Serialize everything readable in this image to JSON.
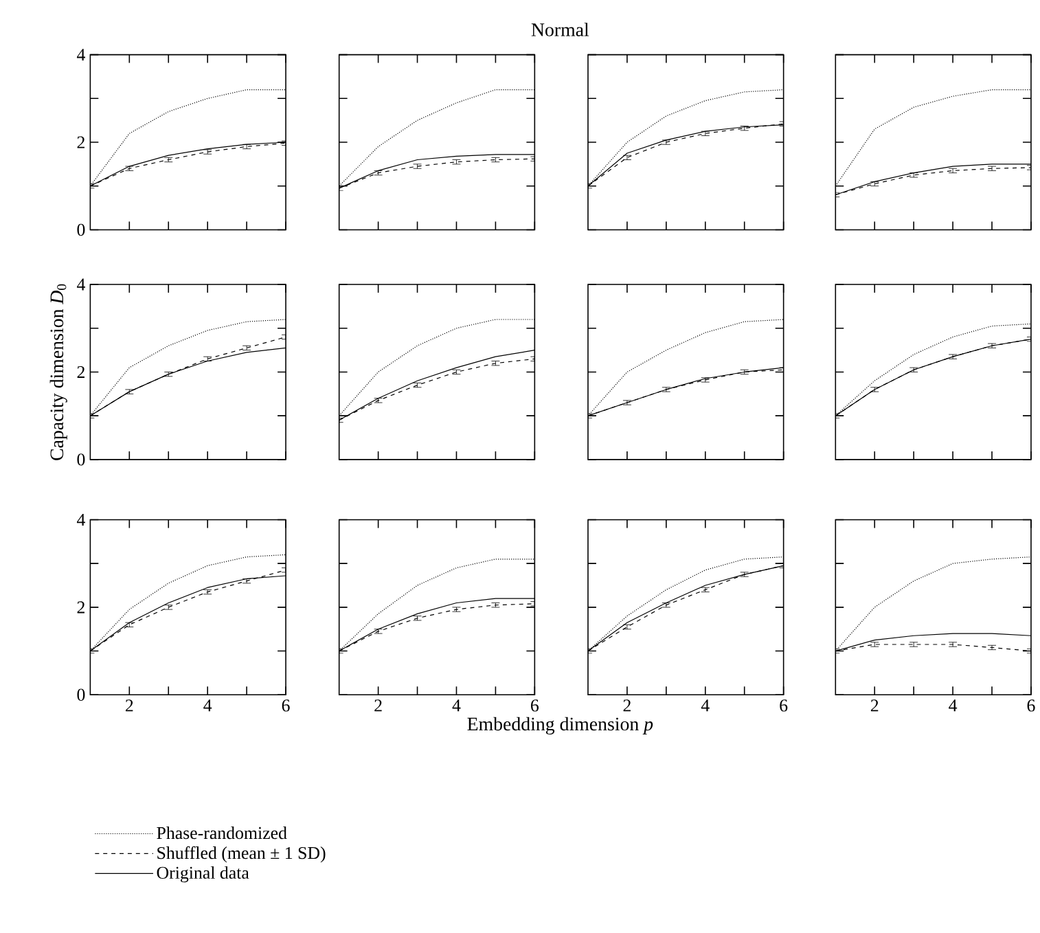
{
  "chart_data": [
    {
      "type": "line",
      "x": [
        1,
        2,
        3,
        4,
        5,
        6
      ],
      "xlim": [
        1,
        6
      ],
      "ylim": [
        0,
        4
      ],
      "xticks": [
        2,
        4,
        6
      ],
      "yticks": [
        0,
        2,
        4
      ],
      "tick_labels": "y",
      "marker": "none",
      "grid": false,
      "series": [
        {
          "color": "#000000",
          "line_style": "dotted",
          "values": [
            1.0,
            2.2,
            2.7,
            3.0,
            3.2,
            3.2
          ]
        },
        {
          "color": "#000000",
          "line_style": "dashed",
          "values": [
            1.0,
            1.4,
            1.6,
            1.78,
            1.9,
            1.98
          ],
          "errors": [
            0.05,
            0.05,
            0.05,
            0.05,
            0.05,
            0.05
          ]
        },
        {
          "color": "#000000",
          "line_style": "solid",
          "values": [
            1.0,
            1.45,
            1.7,
            1.85,
            1.95,
            2.0
          ]
        }
      ]
    },
    {
      "type": "line",
      "title": "Normal",
      "x": [
        1,
        2,
        3,
        4,
        5,
        6
      ],
      "xlim": [
        1,
        6
      ],
      "ylim": [
        0,
        4
      ],
      "xticks": [
        2,
        4,
        6
      ],
      "yticks": [
        0,
        2,
        4
      ],
      "tick_labels": false,
      "marker": "none",
      "grid": false,
      "series": [
        {
          "color": "#000000",
          "line_style": "dotted",
          "values": [
            1.0,
            1.9,
            2.5,
            2.9,
            3.2,
            3.2
          ]
        },
        {
          "color": "#000000",
          "line_style": "dashed",
          "values": [
            0.95,
            1.3,
            1.45,
            1.55,
            1.6,
            1.62
          ],
          "errors": [
            0.05,
            0.05,
            0.05,
            0.05,
            0.05,
            0.05
          ]
        },
        {
          "color": "#000000",
          "line_style": "solid",
          "values": [
            0.95,
            1.35,
            1.6,
            1.68,
            1.72,
            1.72
          ]
        }
      ]
    },
    {
      "type": "line",
      "x": [
        1,
        2,
        3,
        4,
        5,
        6
      ],
      "xlim": [
        1,
        6
      ],
      "ylim": [
        0,
        4
      ],
      "xticks": [
        2,
        4,
        6
      ],
      "yticks": [
        0,
        2,
        4
      ],
      "tick_labels": false,
      "marker": "none",
      "grid": false,
      "series": [
        {
          "color": "#000000",
          "line_style": "dotted",
          "values": [
            1.0,
            2.0,
            2.6,
            2.95,
            3.15,
            3.2
          ]
        },
        {
          "color": "#000000",
          "line_style": "dashed",
          "values": [
            1.0,
            1.65,
            2.0,
            2.2,
            2.32,
            2.42
          ],
          "errors": [
            0.05,
            0.05,
            0.05,
            0.05,
            0.05,
            0.05
          ]
        },
        {
          "color": "#000000",
          "line_style": "solid",
          "values": [
            1.0,
            1.75,
            2.05,
            2.25,
            2.35,
            2.4
          ]
        }
      ]
    },
    {
      "type": "line",
      "x": [
        1,
        2,
        3,
        4,
        5,
        6
      ],
      "xlim": [
        1,
        6
      ],
      "ylim": [
        0,
        4
      ],
      "xticks": [
        2,
        4,
        6
      ],
      "yticks": [
        0,
        2,
        4
      ],
      "tick_labels": false,
      "marker": "none",
      "grid": false,
      "series": [
        {
          "color": "#000000",
          "line_style": "dotted",
          "values": [
            1.0,
            2.3,
            2.8,
            3.05,
            3.2,
            3.2
          ]
        },
        {
          "color": "#000000",
          "line_style": "dashed",
          "values": [
            0.8,
            1.05,
            1.25,
            1.35,
            1.4,
            1.42
          ],
          "errors": [
            0.05,
            0.05,
            0.05,
            0.05,
            0.05,
            0.05
          ]
        },
        {
          "color": "#000000",
          "line_style": "solid",
          "values": [
            0.8,
            1.1,
            1.3,
            1.45,
            1.5,
            1.5
          ]
        }
      ]
    },
    {
      "type": "line",
      "ylabel": "Capacity dimension *D*$_{0}$",
      "x": [
        1,
        2,
        3,
        4,
        5,
        6
      ],
      "xlim": [
        1,
        6
      ],
      "ylim": [
        0,
        4
      ],
      "xticks": [
        2,
        4,
        6
      ],
      "yticks": [
        0,
        2,
        4
      ],
      "tick_labels": "y",
      "marker": "none",
      "grid": false,
      "series": [
        {
          "color": "#000000",
          "line_style": "dotted",
          "values": [
            1.0,
            2.1,
            2.6,
            2.95,
            3.15,
            3.2
          ]
        },
        {
          "color": "#000000",
          "line_style": "dashed",
          "values": [
            1.0,
            1.55,
            1.95,
            2.3,
            2.55,
            2.8
          ],
          "errors": [
            0.05,
            0.05,
            0.05,
            0.05,
            0.05,
            0.05
          ]
        },
        {
          "color": "#000000",
          "line_style": "solid",
          "values": [
            1.0,
            1.55,
            1.95,
            2.25,
            2.45,
            2.55
          ]
        }
      ]
    },
    {
      "type": "line",
      "x": [
        1,
        2,
        3,
        4,
        5,
        6
      ],
      "xlim": [
        1,
        6
      ],
      "ylim": [
        0,
        4
      ],
      "xticks": [
        2,
        4,
        6
      ],
      "yticks": [
        0,
        2,
        4
      ],
      "tick_labels": false,
      "marker": "none",
      "grid": false,
      "series": [
        {
          "color": "#000000",
          "line_style": "dotted",
          "values": [
            1.0,
            2.0,
            2.6,
            3.0,
            3.2,
            3.2
          ]
        },
        {
          "color": "#000000",
          "line_style": "dashed",
          "values": [
            0.9,
            1.35,
            1.7,
            2.0,
            2.2,
            2.3
          ],
          "errors": [
            0.05,
            0.05,
            0.05,
            0.05,
            0.05,
            0.05
          ]
        },
        {
          "color": "#000000",
          "line_style": "solid",
          "values": [
            0.9,
            1.4,
            1.8,
            2.1,
            2.35,
            2.5
          ]
        }
      ]
    },
    {
      "type": "line",
      "x": [
        1,
        2,
        3,
        4,
        5,
        6
      ],
      "xlim": [
        1,
        6
      ],
      "ylim": [
        0,
        4
      ],
      "xticks": [
        2,
        4,
        6
      ],
      "yticks": [
        0,
        2,
        4
      ],
      "tick_labels": false,
      "marker": "none",
      "grid": false,
      "series": [
        {
          "color": "#000000",
          "line_style": "dotted",
          "values": [
            1.0,
            2.0,
            2.5,
            2.9,
            3.15,
            3.2
          ]
        },
        {
          "color": "#000000",
          "line_style": "dashed",
          "values": [
            1.0,
            1.3,
            1.6,
            1.82,
            2.0,
            2.05
          ],
          "errors": [
            0.05,
            0.05,
            0.05,
            0.05,
            0.05,
            0.05
          ]
        },
        {
          "color": "#000000",
          "line_style": "solid",
          "values": [
            1.0,
            1.3,
            1.6,
            1.85,
            2.0,
            2.1
          ]
        }
      ]
    },
    {
      "type": "line",
      "x": [
        1,
        2,
        3,
        4,
        5,
        6
      ],
      "xlim": [
        1,
        6
      ],
      "ylim": [
        0,
        4
      ],
      "xticks": [
        2,
        4,
        6
      ],
      "yticks": [
        0,
        2,
        4
      ],
      "tick_labels": false,
      "marker": "none",
      "grid": false,
      "series": [
        {
          "color": "#000000",
          "line_style": "dotted",
          "values": [
            1.0,
            1.8,
            2.4,
            2.8,
            3.05,
            3.1
          ]
        },
        {
          "color": "#000000",
          "line_style": "dashed",
          "values": [
            1.0,
            1.6,
            2.05,
            2.35,
            2.6,
            2.75
          ],
          "errors": [
            0.05,
            0.05,
            0.05,
            0.05,
            0.05,
            0.05
          ]
        },
        {
          "color": "#000000",
          "line_style": "solid",
          "values": [
            1.0,
            1.6,
            2.05,
            2.35,
            2.6,
            2.75
          ]
        }
      ]
    },
    {
      "type": "line",
      "x": [
        1,
        2,
        3,
        4,
        5,
        6
      ],
      "xlim": [
        1,
        6
      ],
      "ylim": [
        0,
        4
      ],
      "xticks": [
        2,
        4,
        6
      ],
      "yticks": [
        0,
        2,
        4
      ],
      "marker": "none",
      "grid": false,
      "legend": "bottom",
      "series": [
        {
          "name": "Phase-randomized",
          "color": "#000000",
          "line_style": "dotted",
          "values": [
            1.0,
            1.95,
            2.55,
            2.95,
            3.15,
            3.2
          ]
        },
        {
          "name": "Shuffled (mean ± 1 SD)",
          "color": "#000000",
          "line_style": "dashed",
          "values": [
            1.0,
            1.6,
            2.0,
            2.35,
            2.6,
            2.85
          ],
          "errors": [
            0.05,
            0.05,
            0.05,
            0.05,
            0.05,
            0.05
          ]
        },
        {
          "name": "Original data",
          "color": "#000000",
          "line_style": "solid",
          "values": [
            1.0,
            1.65,
            2.1,
            2.45,
            2.65,
            2.72
          ]
        }
      ]
    },
    {
      "type": "line",
      "xlabel": "Embedding dimension *p*",
      "x": [
        1,
        2,
        3,
        4,
        5,
        6
      ],
      "xlim": [
        1,
        6
      ],
      "ylim": [
        0,
        4
      ],
      "xticks": [
        2,
        4,
        6
      ],
      "yticks": [
        0,
        2,
        4
      ],
      "tick_labels": "x",
      "marker": "none",
      "grid": false,
      "series": [
        {
          "color": "#000000",
          "line_style": "dotted",
          "values": [
            1.0,
            1.85,
            2.5,
            2.9,
            3.1,
            3.1
          ]
        },
        {
          "color": "#000000",
          "line_style": "dashed",
          "values": [
            1.0,
            1.45,
            1.75,
            1.95,
            2.05,
            2.08
          ],
          "errors": [
            0.05,
            0.05,
            0.05,
            0.05,
            0.05,
            0.05
          ]
        },
        {
          "color": "#000000",
          "line_style": "solid",
          "values": [
            1.0,
            1.5,
            1.85,
            2.1,
            2.2,
            2.2
          ]
        }
      ]
    },
    {
      "type": "line",
      "x": [
        1,
        2,
        3,
        4,
        5,
        6
      ],
      "xlim": [
        1,
        6
      ],
      "ylim": [
        0,
        4
      ],
      "xticks": [
        2,
        4,
        6
      ],
      "yticks": [
        0,
        2,
        4
      ],
      "tick_labels": "x",
      "marker": "none",
      "grid": false,
      "series": [
        {
          "color": "#000000",
          "line_style": "dotted",
          "values": [
            1.0,
            1.8,
            2.4,
            2.85,
            3.1,
            3.15
          ]
        },
        {
          "color": "#000000",
          "line_style": "dashed",
          "values": [
            1.0,
            1.55,
            2.05,
            2.4,
            2.75,
            2.95
          ],
          "errors": [
            0.05,
            0.05,
            0.05,
            0.05,
            0.05,
            0.05
          ]
        },
        {
          "color": "#000000",
          "line_style": "solid",
          "values": [
            1.0,
            1.65,
            2.1,
            2.5,
            2.75,
            2.95
          ]
        }
      ]
    },
    {
      "type": "line",
      "x": [
        1,
        2,
        3,
        4,
        5,
        6
      ],
      "xlim": [
        1,
        6
      ],
      "ylim": [
        0,
        4
      ],
      "xticks": [
        2,
        4,
        6
      ],
      "yticks": [
        0,
        2,
        4
      ],
      "tick_labels": "x",
      "marker": "none",
      "grid": false,
      "series": [
        {
          "color": "#000000",
          "line_style": "dotted",
          "values": [
            1.0,
            2.0,
            2.6,
            3.0,
            3.1,
            3.15
          ]
        },
        {
          "color": "#000000",
          "line_style": "dashed",
          "values": [
            1.0,
            1.15,
            1.15,
            1.15,
            1.08,
            1.0
          ],
          "errors": [
            0.05,
            0.05,
            0.05,
            0.05,
            0.05,
            0.05
          ]
        },
        {
          "color": "#000000",
          "line_style": "solid",
          "values": [
            1.0,
            1.25,
            1.35,
            1.4,
            1.4,
            1.35
          ]
        }
      ]
    }
  ]
}
